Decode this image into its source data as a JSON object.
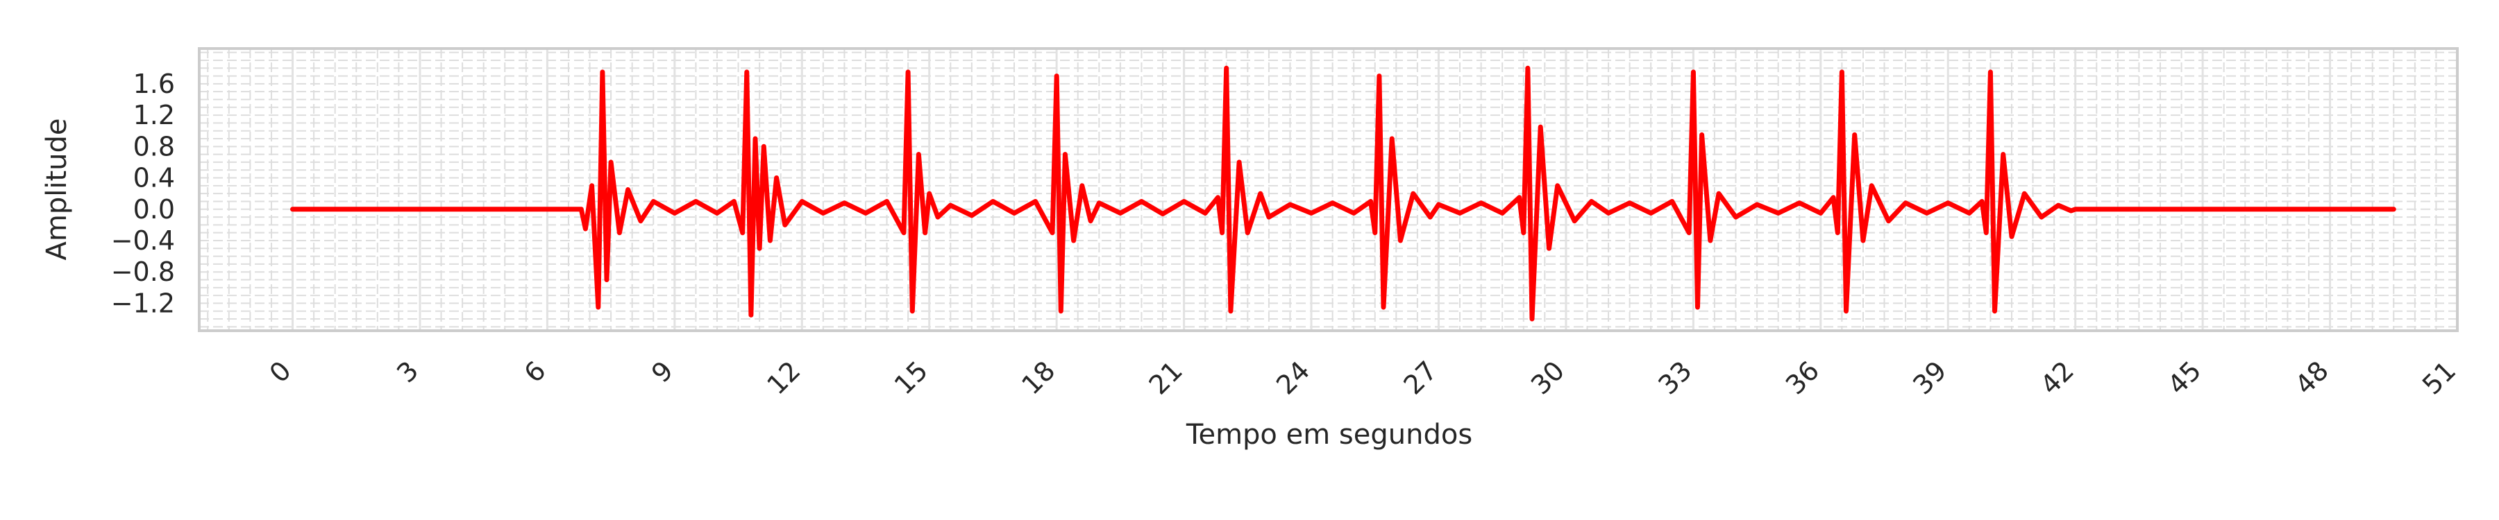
{
  "chart_data": {
    "type": "line",
    "title": "",
    "xlabel": "Tempo em segundos",
    "ylabel": "Amplitude",
    "xlim": [
      -2.2,
      51
    ],
    "ylim": [
      -1.55,
      2.05
    ],
    "x_ticks": [
      0,
      3,
      6,
      9,
      12,
      15,
      18,
      21,
      24,
      27,
      30,
      33,
      36,
      39,
      42,
      45,
      48,
      51
    ],
    "y_ticks": [
      -1.2,
      -0.8,
      -0.4,
      0.0,
      0.4,
      0.8,
      1.2,
      1.6
    ],
    "y_tick_labels": [
      "−1.2",
      "−0.8",
      "−0.4",
      "0.0",
      "0.4",
      "0.8",
      "1.2",
      "1.6"
    ],
    "grid": true,
    "legend": "none",
    "line_color": "#ff0000",
    "grid_color": "#dddddd",
    "series": [
      {
        "x": [
          0,
          6.8,
          6.9,
          7.05,
          7.2,
          7.3,
          7.4,
          7.5,
          7.7,
          7.9,
          8.2,
          8.5,
          9.0,
          9.5,
          10.0,
          10.4,
          10.6,
          10.7,
          10.8,
          10.9,
          11.0,
          11.1,
          11.25,
          11.4,
          11.6,
          12.0,
          12.5,
          13.0,
          13.5,
          14.0,
          14.4,
          14.5,
          14.6,
          14.75,
          14.9,
          15.0,
          15.2,
          15.5,
          16.0,
          16.5,
          17.0,
          17.5,
          17.9,
          18.0,
          18.1,
          18.2,
          18.4,
          18.6,
          18.8,
          19.0,
          19.5,
          20.0,
          20.5,
          21.0,
          21.5,
          21.8,
          21.9,
          22.0,
          22.1,
          22.3,
          22.5,
          22.8,
          23.0,
          23.5,
          24.0,
          24.5,
          25.0,
          25.4,
          25.5,
          25.6,
          25.7,
          25.9,
          26.1,
          26.4,
          26.8,
          27.0,
          27.5,
          28.0,
          28.5,
          28.9,
          29.0,
          29.1,
          29.2,
          29.4,
          29.6,
          29.8,
          30.2,
          30.6,
          31.0,
          31.5,
          32.0,
          32.5,
          32.9,
          33.0,
          33.1,
          33.2,
          33.4,
          33.6,
          34.0,
          34.5,
          35.0,
          35.5,
          36.0,
          36.3,
          36.4,
          36.5,
          36.6,
          36.8,
          37.0,
          37.2,
          37.6,
          38.0,
          38.5,
          39.0,
          39.5,
          39.8,
          39.9,
          40.0,
          40.1,
          40.3,
          40.5,
          40.8,
          41.2,
          41.6,
          41.9,
          42.0,
          49.5
        ],
        "y": [
          0,
          0,
          -0.25,
          0.3,
          -1.25,
          1.75,
          -0.9,
          0.6,
          -0.3,
          0.25,
          -0.15,
          0.1,
          -0.05,
          0.1,
          -0.05,
          0.1,
          -0.3,
          1.75,
          -1.35,
          0.9,
          -0.5,
          0.8,
          -0.4,
          0.4,
          -0.2,
          0.1,
          -0.05,
          0.08,
          -0.05,
          0.1,
          -0.3,
          1.75,
          -1.3,
          0.7,
          -0.3,
          0.2,
          -0.1,
          0.05,
          -0.08,
          0.1,
          -0.05,
          0.1,
          -0.3,
          1.7,
          -1.3,
          0.7,
          -0.4,
          0.3,
          -0.15,
          0.08,
          -0.05,
          0.1,
          -0.06,
          0.1,
          -0.05,
          0.15,
          -0.3,
          1.8,
          -1.3,
          0.6,
          -0.3,
          0.2,
          -0.1,
          0.06,
          -0.05,
          0.08,
          -0.05,
          0.1,
          -0.3,
          1.7,
          -1.25,
          0.9,
          -0.4,
          0.2,
          -0.1,
          0.06,
          -0.05,
          0.08,
          -0.05,
          0.15,
          -0.3,
          1.8,
          -1.4,
          1.05,
          -0.5,
          0.3,
          -0.15,
          0.1,
          -0.05,
          0.08,
          -0.05,
          0.1,
          -0.3,
          1.75,
          -1.25,
          0.95,
          -0.4,
          0.2,
          -0.1,
          0.06,
          -0.05,
          0.08,
          -0.05,
          0.15,
          -0.3,
          1.75,
          -1.3,
          0.95,
          -0.4,
          0.3,
          -0.15,
          0.08,
          -0.05,
          0.08,
          -0.05,
          0.1,
          -0.3,
          1.75,
          -1.3,
          0.7,
          -0.35,
          0.2,
          -0.1,
          0.05,
          -0.02,
          0,
          0
        ]
      }
    ]
  }
}
